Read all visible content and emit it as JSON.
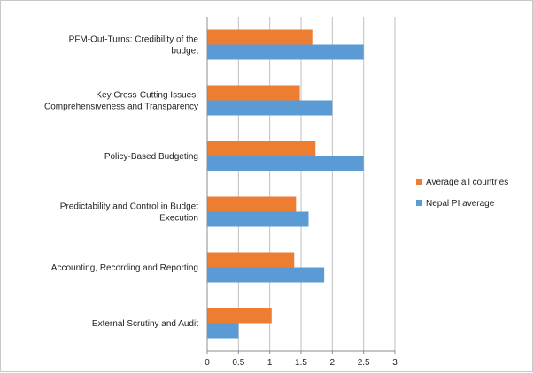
{
  "chart_data": {
    "type": "bar",
    "orientation": "horizontal",
    "categories": [
      [
        "PFM-Out-Turns: Credibility of the",
        "budget"
      ],
      [
        "Key Cross-Cutting Issues:",
        "Comprehensiveness and Transparency"
      ],
      [
        "Policy-Based Budgeting"
      ],
      [
        "Predictability and Control in Budget",
        "Execution"
      ],
      [
        "Accounting, Recording and Reporting"
      ],
      [
        "External Scrutiny and Audit"
      ]
    ],
    "series": [
      {
        "name": "Average all countries",
        "color": "#ed7d31",
        "values": [
          1.68,
          1.48,
          1.73,
          1.42,
          1.39,
          1.03
        ]
      },
      {
        "name": "Nepal PI average",
        "color": "#5b9bd5",
        "values": [
          2.5,
          2.0,
          2.5,
          1.62,
          1.87,
          0.5
        ]
      }
    ],
    "xlim": [
      0,
      3
    ],
    "xticks": [
      "0",
      "0.5",
      "1",
      "1.5",
      "2",
      "2.5",
      "3"
    ],
    "xtick_values": [
      0,
      0.5,
      1,
      1.5,
      2,
      2.5,
      3
    ],
    "grid": "vertical major gridlines",
    "legend_position": "right",
    "gridline_color": "#bfbfbf"
  }
}
